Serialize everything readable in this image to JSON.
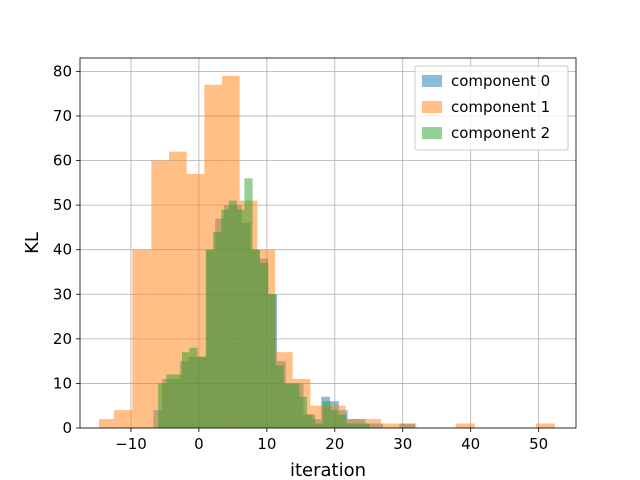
{
  "chart_data": {
    "type": "bar",
    "subtype": "overlapping-histogram",
    "xlabel": "iteration",
    "ylabel": "KL",
    "xlim": [
      -17.5,
      55.5
    ],
    "ylim": [
      0,
      83
    ],
    "x_ticks": [
      -10,
      0,
      10,
      20,
      30,
      40,
      50
    ],
    "y_ticks": [
      0,
      10,
      20,
      30,
      40,
      50,
      60,
      70,
      80
    ],
    "x_tick_labels": [
      "−10",
      "0",
      "10",
      "20",
      "30",
      "40",
      "50"
    ],
    "y_tick_labels": [
      "0",
      "10",
      "20",
      "30",
      "40",
      "50",
      "60",
      "70",
      "80"
    ],
    "grid": true,
    "legend_position": "top-right",
    "series": [
      {
        "name": "component 0",
        "color": "#1f77b4",
        "alpha": 0.5,
        "bins": [
          [
            -6.7,
            -5.4,
            4
          ],
          [
            -5.4,
            -4.1,
            11
          ],
          [
            -4.1,
            -2.8,
            11
          ],
          [
            -2.8,
            -1.5,
            15
          ],
          [
            -1.5,
            -0.2,
            16
          ],
          [
            -0.2,
            1.1,
            16
          ],
          [
            1.1,
            2.4,
            40
          ],
          [
            2.4,
            3.7,
            47
          ],
          [
            3.7,
            5.0,
            50
          ],
          [
            5.0,
            6.3,
            50
          ],
          [
            6.3,
            7.6,
            46
          ],
          [
            7.6,
            8.9,
            40
          ],
          [
            8.9,
            10.2,
            38
          ],
          [
            10.2,
            11.5,
            30
          ],
          [
            11.5,
            12.8,
            15
          ],
          [
            12.8,
            14.1,
            10
          ],
          [
            14.1,
            15.4,
            10
          ],
          [
            15.4,
            16.7,
            3
          ],
          [
            16.7,
            18.0,
            2
          ],
          [
            18.0,
            19.3,
            7
          ],
          [
            19.3,
            20.6,
            6
          ],
          [
            20.6,
            21.9,
            4
          ],
          [
            21.9,
            23.2,
            2
          ],
          [
            23.2,
            24.5,
            2
          ],
          [
            24.5,
            25.8,
            1
          ],
          [
            25.8,
            27.1,
            1
          ],
          [
            29.5,
            31.8,
            1
          ]
        ]
      },
      {
        "name": "component 1",
        "color": "#ff7f0e",
        "alpha": 0.5,
        "bins": [
          [
            -14.7,
            -12.5,
            2
          ],
          [
            -12.5,
            -9.8,
            4
          ],
          [
            -9.8,
            -7.0,
            40
          ],
          [
            -7.0,
            -4.4,
            60
          ],
          [
            -4.4,
            -1.8,
            62
          ],
          [
            -1.8,
            0.8,
            57
          ],
          [
            0.8,
            3.4,
            77
          ],
          [
            3.4,
            6.0,
            79
          ],
          [
            6.0,
            8.6,
            51
          ],
          [
            8.6,
            11.2,
            40
          ],
          [
            11.2,
            13.8,
            17
          ],
          [
            13.8,
            16.4,
            11
          ],
          [
            16.4,
            19.0,
            5
          ],
          [
            19.0,
            21.6,
            5
          ],
          [
            21.6,
            24.2,
            2
          ],
          [
            24.2,
            26.8,
            2
          ],
          [
            26.8,
            29.4,
            1
          ],
          [
            29.4,
            32.0,
            1
          ],
          [
            37.8,
            40.6,
            1
          ],
          [
            49.6,
            52.4,
            1
          ]
        ]
      },
      {
        "name": "component 2",
        "color": "#2ca02c",
        "alpha": 0.5,
        "bins": [
          [
            -6.0,
            -4.8,
            10
          ],
          [
            -4.8,
            -3.7,
            12
          ],
          [
            -3.7,
            -2.5,
            12
          ],
          [
            -2.5,
            -1.4,
            17
          ],
          [
            -1.4,
            -0.2,
            18
          ],
          [
            -0.2,
            1.0,
            16
          ],
          [
            1.0,
            2.1,
            40
          ],
          [
            2.1,
            3.3,
            44
          ],
          [
            3.3,
            4.4,
            49
          ],
          [
            4.4,
            5.6,
            51
          ],
          [
            5.6,
            6.7,
            49
          ],
          [
            6.7,
            7.9,
            56
          ],
          [
            7.9,
            9.0,
            40
          ],
          [
            9.0,
            10.2,
            37
          ],
          [
            10.2,
            11.3,
            30
          ],
          [
            11.3,
            12.5,
            14
          ],
          [
            12.5,
            13.6,
            10
          ],
          [
            13.6,
            14.8,
            10
          ],
          [
            14.8,
            15.9,
            7
          ],
          [
            15.9,
            17.1,
            3
          ],
          [
            17.1,
            18.2,
            1
          ],
          [
            18.2,
            19.4,
            6
          ],
          [
            19.4,
            20.5,
            4
          ],
          [
            20.5,
            21.7,
            3
          ],
          [
            21.7,
            22.8,
            1
          ],
          [
            22.8,
            24.0,
            1
          ],
          [
            24.0,
            25.1,
            1
          ]
        ]
      }
    ]
  }
}
